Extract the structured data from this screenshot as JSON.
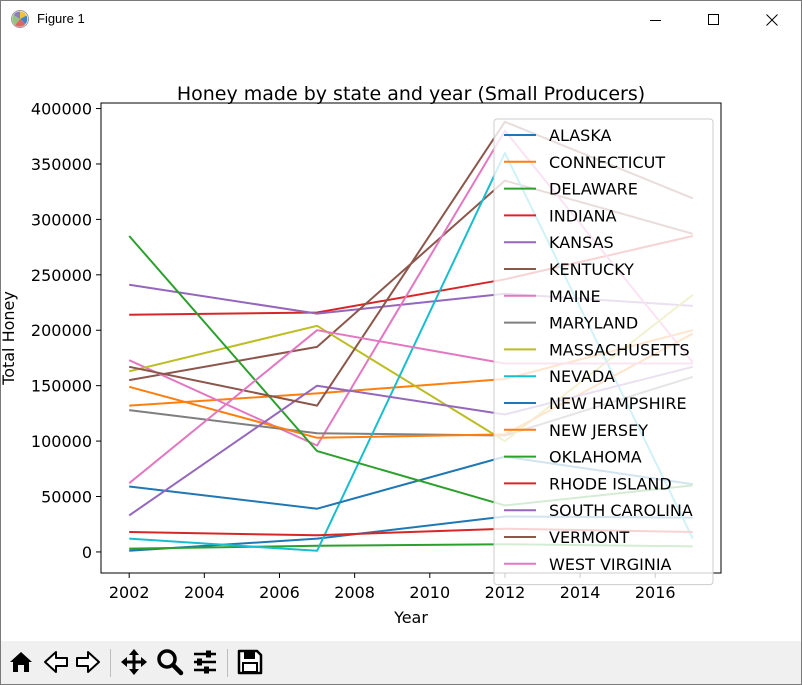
{
  "window": {
    "title": "Figure 1",
    "icons": [
      "matplotlib-icon",
      "minimize-icon",
      "maximize-icon",
      "close-icon"
    ]
  },
  "toolbar": {
    "icons": [
      "home-icon",
      "back-arrow-icon",
      "forward-arrow-icon",
      "pan-icon",
      "zoom-icon",
      "configure-subplots-icon",
      "save-icon"
    ]
  },
  "chart_data": {
    "type": "line",
    "title": "Honey made by state and year (Small Producers)",
    "xlabel": "Year",
    "ylabel": "Total Honey",
    "x": [
      2002,
      2007,
      2012,
      2017
    ],
    "xlim": [
      2001.25,
      2017.75
    ],
    "ylim": [
      -19000,
      405000
    ],
    "xticks": [
      2002,
      2004,
      2006,
      2008,
      2010,
      2012,
      2014,
      2016
    ],
    "yticks": [
      0,
      50000,
      100000,
      150000,
      200000,
      250000,
      300000,
      350000,
      400000
    ],
    "grid": false,
    "legend_position": "top-right",
    "series": [
      {
        "name": "ALASKA",
        "color": "#1f77b4",
        "values": [
          1000,
          12000,
          32000,
          31000
        ]
      },
      {
        "name": "CONNECTICUT",
        "color": "#ff7f0e",
        "values": [
          132000,
          143000,
          156000,
          200000
        ]
      },
      {
        "name": "DELAWARE",
        "color": "#2ca02c",
        "values": [
          3000,
          5500,
          7000,
          5000
        ]
      },
      {
        "name": "INDIANA",
        "color": "#d62728",
        "values": [
          214000,
          216000,
          246000,
          285000
        ]
      },
      {
        "name": "KANSAS",
        "color": "#9467bd",
        "values": [
          241000,
          215000,
          233000,
          222000
        ]
      },
      {
        "name": "KENTUCKY",
        "color": "#8c564b",
        "values": [
          155000,
          185000,
          335000,
          287000
        ]
      },
      {
        "name": "MAINE",
        "color": "#e377c2",
        "values": [
          173000,
          96000,
          380000,
          171000
        ]
      },
      {
        "name": "MARYLAND",
        "color": "#7f7f7f",
        "values": [
          128000,
          107000,
          105000,
          158000
        ]
      },
      {
        "name": "MASSACHUSETTS",
        "color": "#bcbd22",
        "values": [
          163000,
          204000,
          100000,
          232000
        ]
      },
      {
        "name": "NEVADA",
        "color": "#17becf",
        "values": [
          12000,
          1000,
          360000,
          12000
        ]
      },
      {
        "name": "NEW HAMPSHIRE",
        "color": "#1f77b4",
        "values": [
          59000,
          39000,
          86000,
          61000
        ]
      },
      {
        "name": "NEW JERSEY",
        "color": "#ff7f0e",
        "values": [
          149000,
          103000,
          106000,
          197000
        ]
      },
      {
        "name": "OKLAHOMA",
        "color": "#2ca02c",
        "values": [
          285000,
          91000,
          42000,
          60000
        ]
      },
      {
        "name": "RHODE ISLAND",
        "color": "#d62728",
        "values": [
          18000,
          15000,
          21000,
          18000
        ]
      },
      {
        "name": "SOUTH CAROLINA",
        "color": "#9467bd",
        "values": [
          33000,
          150000,
          124000,
          167000
        ]
      },
      {
        "name": "VERMONT",
        "color": "#8c564b",
        "values": [
          167000,
          132000,
          388000,
          319000
        ]
      },
      {
        "name": "WEST VIRGINIA",
        "color": "#e377c2",
        "values": [
          62000,
          200000,
          170000,
          170000
        ]
      }
    ]
  }
}
